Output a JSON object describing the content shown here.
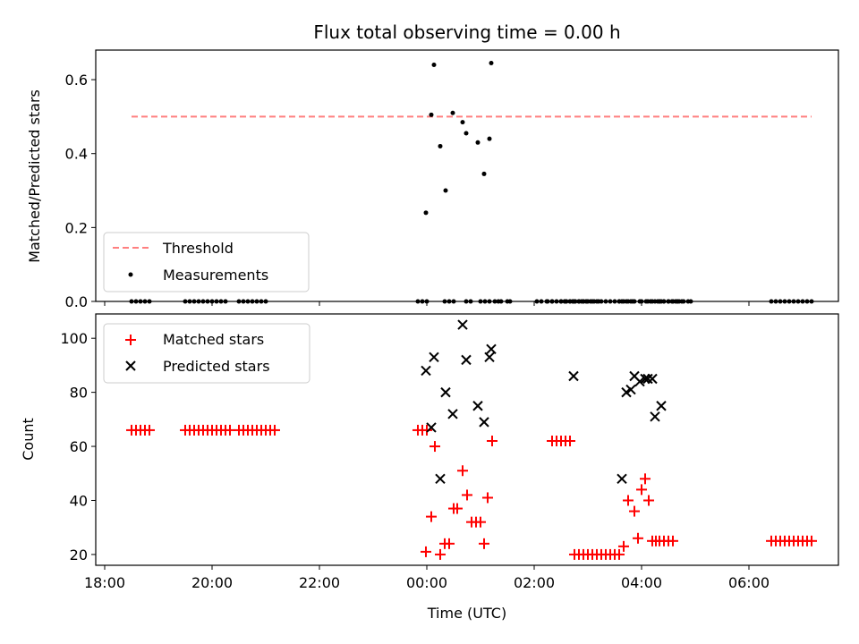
{
  "chart_data": [
    {
      "type": "scatter",
      "title": "Flux total observing time = 0.00 h",
      "xlabel": "",
      "ylabel": "Matched/Predicted stars",
      "xlim": [
        "17:50",
        "31:40"
      ],
      "ylim": [
        0,
        0.68
      ],
      "yticks": [
        0.0,
        0.2,
        0.4,
        0.6
      ],
      "ytick_labels": [
        "0.0",
        "0.2",
        "0.4",
        "0.6"
      ],
      "legend": {
        "position": "bottom-left",
        "entries": [
          "Threshold",
          "Measurements"
        ]
      },
      "threshold": {
        "name": "Threshold",
        "y": 0.5,
        "x": [
          "18:30",
          "31:10"
        ],
        "color": "#ff7f7f"
      },
      "series": [
        {
          "name": "Measurements",
          "color": "#000000",
          "marker": "dot",
          "x": [
            "23:59",
            "24:05",
            "24:08",
            "24:15",
            "24:21",
            "24:29",
            "24:40",
            "24:44",
            "24:57",
            "25:04",
            "25:10",
            "25:12",
            "25:16",
            "25:20",
            "25:23",
            "25:30",
            "25:33",
            "26:30",
            "26:36",
            "26:40",
            "26:43",
            "26:46",
            "26:50",
            "26:55",
            "26:58",
            "26:03",
            "26:08",
            "26:14",
            "26:15",
            "26:20",
            "26:34",
            "26:44",
            "26:50",
            "26:53",
            "26:59",
            "27:03",
            "27:07",
            "27:12",
            "27:38",
            "27:43",
            "27:48",
            "27:50",
            "28:00",
            "28:07",
            "28:12",
            "28:18",
            "28:22",
            "28:30",
            "28:34",
            "28:38",
            "28:42",
            "28:47",
            "28:52",
            "28:55",
            "27:35",
            "27:45",
            "27:52",
            "27:58",
            "28:05",
            "28:10",
            "28:15",
            "28:20",
            "28:25",
            "28:30",
            "28:35",
            "28:40",
            "28:45"
          ],
          "y": [
            0.24,
            0.505,
            0.64,
            0.42,
            0.3,
            0.51,
            0.485,
            0.455,
            0.43,
            0.345,
            0.44,
            0.645,
            0.0,
            0.0,
            0.0,
            0.0,
            0.0,
            0.0,
            0.0,
            0.0,
            0.0,
            0.0,
            0.0,
            0.0,
            0.0,
            0.0,
            0.0,
            0.0,
            0.0,
            0.0,
            0.0,
            0.0,
            0.0,
            0.0,
            0.0,
            0.0,
            0.0,
            0.0,
            0.0,
            0.0,
            0.0,
            0.0,
            0.0,
            0.0,
            0.0,
            0.0,
            0.0,
            0.0,
            0.0,
            0.0,
            0.0,
            0.0,
            0.0,
            0.0,
            0.0,
            0.0,
            0.0,
            0.0,
            0.0,
            0.0,
            0.0,
            0.0,
            0.0,
            0.0,
            0.0,
            0.0,
            0.0
          ]
        }
      ]
    },
    {
      "type": "scatter",
      "title": "",
      "xlabel": "Time (UTC)",
      "ylabel": "Count",
      "xlim": [
        "17:50",
        "31:40"
      ],
      "ylim": [
        16,
        109
      ],
      "yticks": [
        20,
        40,
        60,
        80,
        100
      ],
      "xticks": [
        "18:00",
        "20:00",
        "22:00",
        "00:00",
        "02:00",
        "04:00",
        "06:00"
      ],
      "legend": {
        "position": "top-left",
        "entries": [
          "Matched stars",
          "Predicted stars"
        ]
      },
      "series": [
        {
          "name": "Matched stars",
          "color": "#ff0000",
          "marker": "plus",
          "x": [
            "18:30",
            "18:35",
            "18:40",
            "18:45",
            "18:50",
            "19:30",
            "19:35",
            "19:40",
            "19:45",
            "19:50",
            "19:55",
            "20:00",
            "20:05",
            "20:10",
            "20:15",
            "20:20",
            "20:30",
            "20:35",
            "20:40",
            "20:45",
            "20:50",
            "20:55",
            "21:00",
            "21:05",
            "21:10",
            "23:50",
            "23:55",
            "24:00",
            "23:59",
            "24:05",
            "24:09",
            "24:15",
            "24:20",
            "24:25",
            "24:30",
            "24:34",
            "24:40",
            "24:45",
            "24:50",
            "24:55",
            "25:00",
            "25:04",
            "25:08",
            "25:13",
            "26:20",
            "26:25",
            "26:30",
            "26:35",
            "26:40",
            "26:45",
            "26:50",
            "26:55",
            "27:00",
            "27:05",
            "27:10",
            "27:15",
            "27:20",
            "27:25",
            "27:30",
            "27:35",
            "27:40",
            "27:45",
            "27:52",
            "27:56",
            "28:00",
            "28:04",
            "28:08",
            "28:12",
            "28:16",
            "28:20",
            "28:25",
            "28:30",
            "28:35",
            "30:25",
            "30:30",
            "30:35",
            "30:40",
            "30:45",
            "30:50",
            "30:55",
            "31:00",
            "31:05",
            "31:10"
          ],
          "y": [
            66,
            66,
            66,
            66,
            66,
            66,
            66,
            66,
            66,
            66,
            66,
            66,
            66,
            66,
            66,
            66,
            66,
            66,
            66,
            66,
            66,
            66,
            66,
            66,
            66,
            66,
            66,
            66,
            21,
            34,
            60,
            20,
            24,
            24,
            37,
            37,
            51,
            42,
            32,
            32,
            32,
            24,
            41,
            62,
            62,
            62,
            62,
            62,
            62,
            20,
            20,
            20,
            20,
            20,
            20,
            20,
            20,
            20,
            20,
            20,
            23,
            40,
            36,
            26,
            44,
            48,
            40,
            25,
            25,
            25,
            25,
            25,
            25,
            25,
            25,
            25,
            25,
            25,
            25,
            25,
            25,
            25,
            25
          ]
        },
        {
          "name": "Predicted stars",
          "color": "#000000",
          "marker": "x",
          "x": [
            "23:59",
            "24:05",
            "24:08",
            "24:15",
            "24:21",
            "24:29",
            "24:40",
            "24:44",
            "24:57",
            "25:04",
            "25:10",
            "25:12",
            "26:44",
            "27:38",
            "27:43",
            "27:48",
            "27:52",
            "27:58",
            "28:04",
            "28:07",
            "28:12",
            "28:15",
            "28:22"
          ],
          "y": [
            88,
            67,
            93,
            48,
            80,
            72,
            105,
            92,
            75,
            69,
            93,
            96,
            86,
            48,
            80,
            81,
            86,
            84,
            85,
            85,
            85,
            71,
            75
          ]
        }
      ]
    }
  ]
}
